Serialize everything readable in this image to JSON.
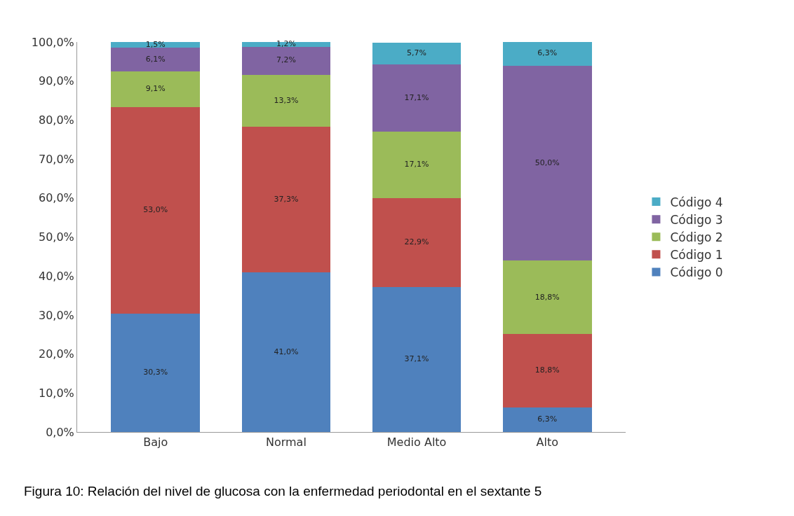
{
  "chart_data": {
    "type": "bar",
    "stacked": true,
    "categories": [
      "Bajo",
      "Normal",
      "Medio Alto",
      "Alto"
    ],
    "series": [
      {
        "name": "Código 0",
        "color": "#4f81bd",
        "values": [
          30.3,
          41.0,
          37.1,
          6.3
        ],
        "value_labels": [
          "30,3%",
          "41,0%",
          "37,1%",
          "6,3%"
        ]
      },
      {
        "name": "Código 1",
        "color": "#c0504d",
        "values": [
          53.0,
          37.3,
          22.9,
          18.8
        ],
        "value_labels": [
          "53,0%",
          "37,3%",
          "22,9%",
          "18,8%"
        ]
      },
      {
        "name": "Código 2",
        "color": "#9bbb59",
        "values": [
          9.1,
          13.3,
          17.1,
          18.8
        ],
        "value_labels": [
          "9,1%",
          "13,3%",
          "17,1%",
          "18,8%"
        ]
      },
      {
        "name": "Código 3",
        "color": "#8064a2",
        "values": [
          6.1,
          7.2,
          17.1,
          50.0
        ],
        "value_labels": [
          "6,1%",
          "7,2%",
          "17,1%",
          "50,0%"
        ]
      },
      {
        "name": "Código 4",
        "color": "#4bacc6",
        "values": [
          1.5,
          1.2,
          5.7,
          6.3
        ],
        "value_labels": [
          "1,5%",
          "1,2%",
          "5,7%",
          "6,3%"
        ]
      }
    ],
    "ylim": [
      0,
      100
    ],
    "yticks": [
      {
        "value": 0,
        "label": "0,0%"
      },
      {
        "value": 10,
        "label": "10,0%"
      },
      {
        "value": 20,
        "label": "20,0%"
      },
      {
        "value": 30,
        "label": "30,0%"
      },
      {
        "value": 40,
        "label": "40,0%"
      },
      {
        "value": 50,
        "label": "50,0%"
      },
      {
        "value": 60,
        "label": "60,0%"
      },
      {
        "value": 70,
        "label": "70,0%"
      },
      {
        "value": 80,
        "label": "80,0%"
      },
      {
        "value": 90,
        "label": "90,0%"
      },
      {
        "value": 100,
        "label": "100,0%"
      }
    ],
    "legend": "right",
    "annotations": [
      "Figura 10: Relación del nivel de glucosa con la enfermedad periodontal en el sextante 5"
    ]
  }
}
